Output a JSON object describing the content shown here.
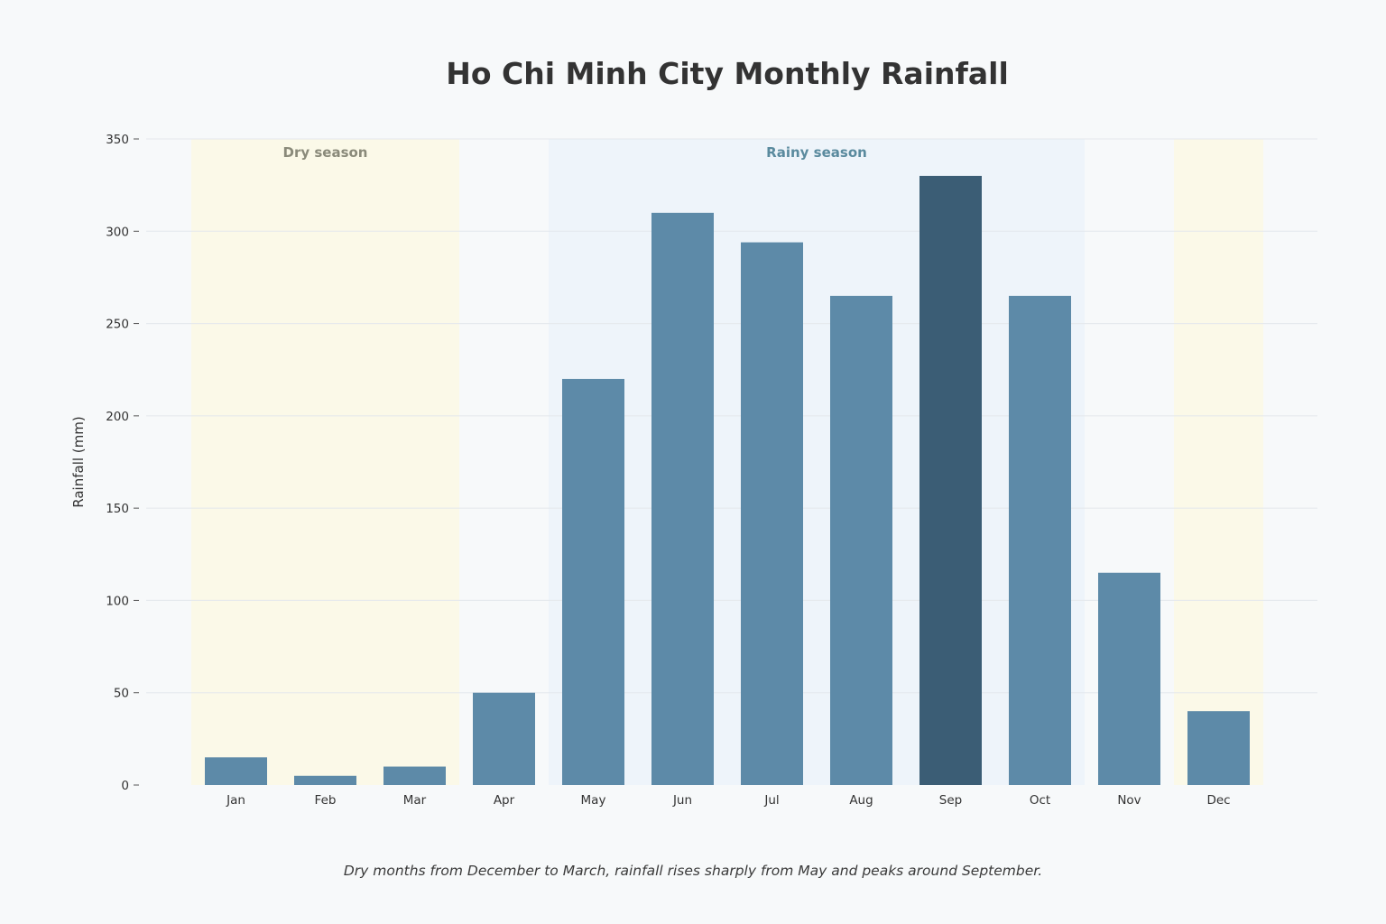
{
  "chart_data": {
    "type": "bar",
    "title": "Ho Chi Minh City Monthly Rainfall",
    "caption": "Dry months from December to March, rainfall rises sharply from May and peaks around September.",
    "xlabel": "",
    "ylabel": "Rainfall (mm)",
    "ylim": [
      0,
      350
    ],
    "yticks": [
      0,
      50,
      100,
      150,
      200,
      250,
      300,
      350
    ],
    "grid": true,
    "categories": [
      "Jan",
      "Feb",
      "Mar",
      "Apr",
      "May",
      "Jun",
      "Jul",
      "Aug",
      "Sep",
      "Oct",
      "Nov",
      "Dec"
    ],
    "values": [
      15,
      5,
      10,
      50,
      220,
      310,
      294,
      265,
      330,
      265,
      115,
      40
    ],
    "highlight": "Sep",
    "bands": [
      {
        "label": "Dry season",
        "from": "Jan",
        "to": "Mar",
        "color": "#fbf9e8",
        "label_color": "#8a8a7a"
      },
      {
        "label": "Rainy season",
        "from": "May",
        "to": "Oct",
        "color": "#eef4fa",
        "label_color": "#5a8a9e"
      },
      {
        "label": "",
        "from": "Dec",
        "to": "Dec",
        "color": "#fbf9e8",
        "label_color": "#8a8a7a"
      }
    ],
    "colors": {
      "bar": "#5d8aa8",
      "highlight_bar": "#3b5d75",
      "grid": "#e4e8ec",
      "background": "#f7f9fa"
    }
  }
}
